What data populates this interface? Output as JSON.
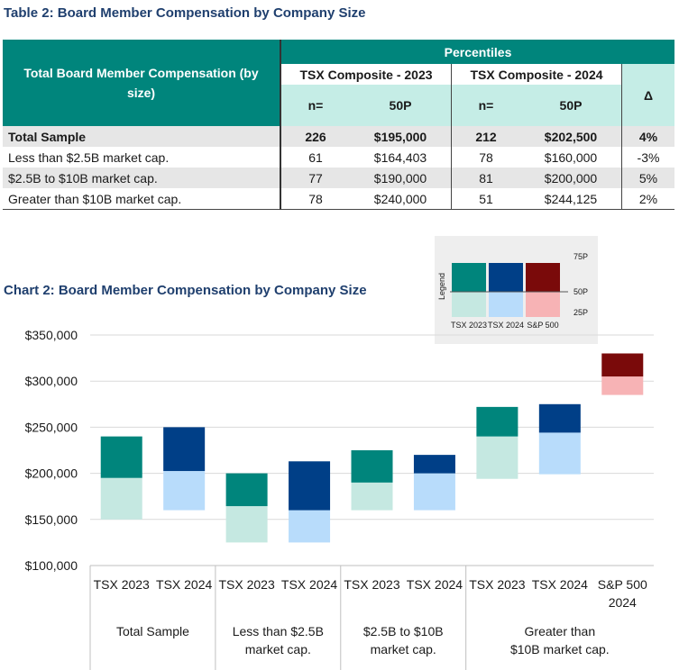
{
  "table": {
    "title": "Table 2: Board Member Compensation by Company Size",
    "header": {
      "row_label": "Total Board Member Compensation (by size)",
      "percentiles": "Percentiles",
      "group_2023": "TSX Composite - 2023",
      "group_2024": "TSX Composite - 2024",
      "delta": "Δ",
      "n": "n=",
      "p50": "50P"
    },
    "rows": [
      {
        "label": "Total Sample",
        "n2023": "226",
        "p2023": "$195,000",
        "n2024": "212",
        "p2024": "$202,500",
        "delta": "4%"
      },
      {
        "label": "Less than $2.5B market cap.",
        "n2023": "61",
        "p2023": "$164,403",
        "n2024": "78",
        "p2024": "$160,000",
        "delta": "-3%"
      },
      {
        "label": "$2.5B to $10B market cap.",
        "n2023": "77",
        "p2023": "$190,000",
        "n2024": "81",
        "p2024": "$200,000",
        "delta": "5%"
      },
      {
        "label": "Greater than $10B market cap.",
        "n2023": "78",
        "p2023": "$240,000",
        "n2024": "51",
        "p2024": "$244,125",
        "delta": "2%"
      }
    ]
  },
  "chart_data": {
    "type": "bar",
    "title": "Chart 2: Board Member Compensation by Company Size",
    "ylim": [
      100000,
      350000
    ],
    "yticks": [
      "$100,000",
      "$150,000",
      "$200,000",
      "$250,000",
      "$300,000",
      "$350,000"
    ],
    "ytick_values": [
      100000,
      150000,
      200000,
      250000,
      300000,
      350000
    ],
    "groups": [
      "Total Sample",
      "Less than $2.5B market cap.",
      "$2.5B to $10B market cap.",
      "Greater than $10B market cap."
    ],
    "bars": [
      {
        "label": "TSX 2023",
        "group": 0,
        "series": "TSX 2023",
        "p25": 150000,
        "p50": 195000,
        "p75": 240000
      },
      {
        "label": "TSX 2024",
        "group": 0,
        "series": "TSX 2024",
        "p25": 160000,
        "p50": 202500,
        "p75": 250000
      },
      {
        "label": "TSX 2023",
        "group": 1,
        "series": "TSX 2023",
        "p25": 125000,
        "p50": 164403,
        "p75": 200000
      },
      {
        "label": "TSX 2024",
        "group": 1,
        "series": "TSX 2024",
        "p25": 125000,
        "p50": 160000,
        "p75": 213000
      },
      {
        "label": "TSX 2023",
        "group": 2,
        "series": "TSX 2023",
        "p25": 160000,
        "p50": 190000,
        "p75": 225000
      },
      {
        "label": "TSX 2024",
        "group": 2,
        "series": "TSX 2024",
        "p25": 160000,
        "p50": 200000,
        "p75": 220000
      },
      {
        "label": "TSX 2023",
        "group": 3,
        "series": "TSX 2023",
        "p25": 194000,
        "p50": 240000,
        "p75": 272000
      },
      {
        "label": "TSX 2024",
        "group": 3,
        "series": "TSX 2024",
        "p25": 199000,
        "p50": 244125,
        "p75": 275000
      },
      {
        "label": "S&P 500 2024",
        "group": 3,
        "series": "S&P 500",
        "p25": 285000,
        "p50": 305000,
        "p75": 330000
      }
    ],
    "colors": {
      "TSX 2023": {
        "upper": "#00857c",
        "lower": "#c5e8e1"
      },
      "TSX 2024": {
        "upper": "#003f87",
        "lower": "#b8dcfb"
      },
      "S&P 500": {
        "upper": "#7a0a0a",
        "lower": "#f7b3b5"
      }
    },
    "legend": {
      "title": "Legend",
      "position": "top-right",
      "series": [
        "TSX 2023",
        "TSX 2024",
        "S&P 500"
      ],
      "levels": [
        "75P",
        "50P",
        "25P"
      ]
    },
    "grid": true
  }
}
